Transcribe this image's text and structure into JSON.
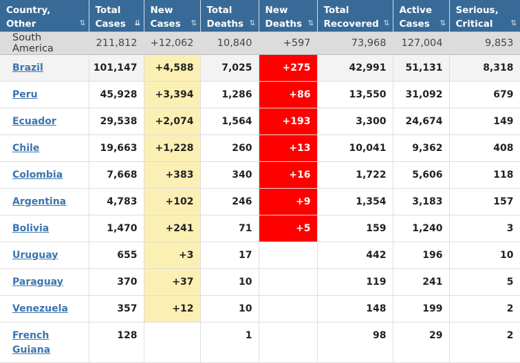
{
  "headers": [
    {
      "line1": "Country,",
      "line2": "Other",
      "sort": "⇅"
    },
    {
      "line1": "Total",
      "line2": "Cases",
      "sort": "⇊"
    },
    {
      "line1": "New",
      "line2": "Cases",
      "sort": "⇅"
    },
    {
      "line1": "Total",
      "line2": "Deaths",
      "sort": "⇅"
    },
    {
      "line1": "New",
      "line2": "Deaths",
      "sort": "⇅"
    },
    {
      "line1": "Total",
      "line2": "Recovered",
      "sort": "⇅"
    },
    {
      "line1": "Active",
      "line2": "Cases",
      "sort": "⇅"
    },
    {
      "line1": "Serious,",
      "line2": "Critical",
      "sort": "⇅"
    }
  ],
  "region": {
    "name": "South America",
    "total_cases": "211,812",
    "new_cases": "+12,062",
    "total_deaths": "10,840",
    "new_deaths": "+597",
    "total_recovered": "73,968",
    "active_cases": "127,004",
    "serious": "9,853"
  },
  "rows": [
    {
      "name": "Brazil",
      "total_cases": "101,147",
      "new_cases": "+4,588",
      "total_deaths": "7,025",
      "new_deaths": "+275",
      "total_recovered": "42,991",
      "active_cases": "51,131",
      "serious": "8,318"
    },
    {
      "name": "Peru",
      "total_cases": "45,928",
      "new_cases": "+3,394",
      "total_deaths": "1,286",
      "new_deaths": "+86",
      "total_recovered": "13,550",
      "active_cases": "31,092",
      "serious": "679"
    },
    {
      "name": "Ecuador",
      "total_cases": "29,538",
      "new_cases": "+2,074",
      "total_deaths": "1,564",
      "new_deaths": "+193",
      "total_recovered": "3,300",
      "active_cases": "24,674",
      "serious": "149"
    },
    {
      "name": "Chile",
      "total_cases": "19,663",
      "new_cases": "+1,228",
      "total_deaths": "260",
      "new_deaths": "+13",
      "total_recovered": "10,041",
      "active_cases": "9,362",
      "serious": "408"
    },
    {
      "name": "Colombia",
      "total_cases": "7,668",
      "new_cases": "+383",
      "total_deaths": "340",
      "new_deaths": "+16",
      "total_recovered": "1,722",
      "active_cases": "5,606",
      "serious": "118"
    },
    {
      "name": "Argentina",
      "total_cases": "4,783",
      "new_cases": "+102",
      "total_deaths": "246",
      "new_deaths": "+9",
      "total_recovered": "1,354",
      "active_cases": "3,183",
      "serious": "157"
    },
    {
      "name": "Bolivia",
      "total_cases": "1,470",
      "new_cases": "+241",
      "total_deaths": "71",
      "new_deaths": "+5",
      "total_recovered": "159",
      "active_cases": "1,240",
      "serious": "3"
    },
    {
      "name": "Uruguay",
      "total_cases": "655",
      "new_cases": "+3",
      "total_deaths": "17",
      "new_deaths": "",
      "total_recovered": "442",
      "active_cases": "196",
      "serious": "10"
    },
    {
      "name": "Paraguay",
      "total_cases": "370",
      "new_cases": "+37",
      "total_deaths": "10",
      "new_deaths": "",
      "total_recovered": "119",
      "active_cases": "241",
      "serious": "5"
    },
    {
      "name": "Venezuela",
      "total_cases": "357",
      "new_cases": "+12",
      "total_deaths": "10",
      "new_deaths": "",
      "total_recovered": "148",
      "active_cases": "199",
      "serious": "2"
    },
    {
      "name": "French Guiana",
      "total_cases": "128",
      "new_cases": "",
      "total_deaths": "1",
      "new_deaths": "",
      "total_recovered": "98",
      "active_cases": "29",
      "serious": "2"
    }
  ],
  "colors": {
    "header_bg": "#376a97",
    "new_cases_bg": "#fcefb4",
    "new_deaths_bg": "#ff0000",
    "link": "#3b74ae"
  }
}
